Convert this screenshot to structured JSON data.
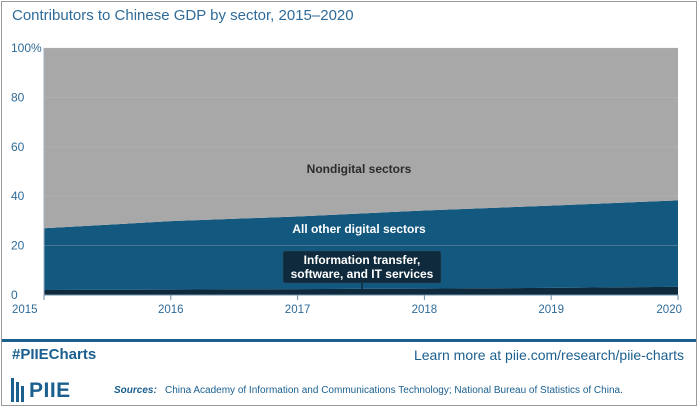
{
  "chart_data": {
    "type": "area",
    "stacked": true,
    "title": "Contributors to Chinese GDP by sector, 2015–2020",
    "x": [
      2015,
      2016,
      2017,
      2018,
      2019,
      2020
    ],
    "x_tick_labels": [
      "2015",
      "2016",
      "2017",
      "2018",
      "2019",
      "2020"
    ],
    "ylim": [
      0,
      100
    ],
    "y_tick_labels": [
      "0",
      "20",
      "40",
      "60",
      "80",
      "100%"
    ],
    "y_ticks": [
      0,
      20,
      40,
      60,
      80,
      100
    ],
    "series": [
      {
        "name": "Information transfer, software, and IT services",
        "values": [
          2.0,
          2.2,
          2.4,
          2.6,
          2.9,
          3.3
        ]
      },
      {
        "name": "All other digital sectors",
        "values": [
          25.0,
          27.7,
          29.4,
          31.6,
          33.3,
          35.0
        ]
      },
      {
        "name": "Nondigital sectors",
        "values": [
          73.0,
          70.1,
          68.2,
          65.8,
          63.8,
          61.7
        ]
      }
    ],
    "colors": [
      "#0f2a3c",
      "#13587f",
      "#a8a8a8"
    ],
    "grid": true,
    "callout_label_lines": [
      "Information transfer,",
      "software, and IT services"
    ]
  },
  "footer": {
    "hashtag": "#PIIECharts",
    "learn_more": "Learn more at piie.com/research/piie-charts",
    "logo_text": "PIIE",
    "sources_label": "Sources:",
    "sources_text": "China Academy of Information and Communications Technology; National Bureau of Statistics of China."
  }
}
